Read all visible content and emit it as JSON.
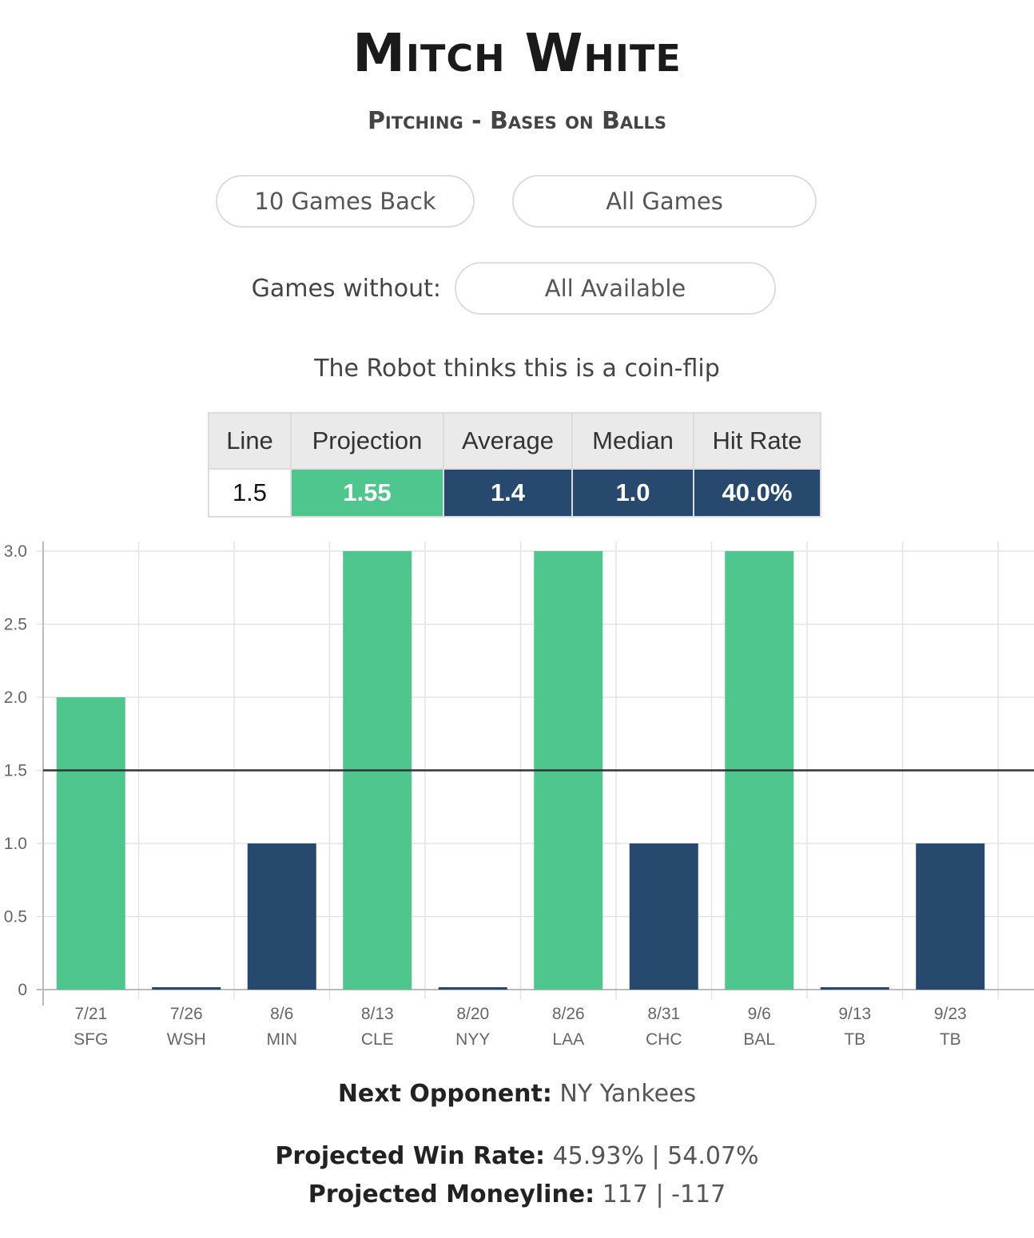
{
  "header": {
    "player_name": "Mitch White",
    "stat_title": "Pitching - Bases on Balls"
  },
  "filters": {
    "games_back": "10 Games Back",
    "all_games": "All Games",
    "games_without_label": "Games without:",
    "games_without_value": "All Available"
  },
  "robot_text": "The Robot thinks this is a coin-flip",
  "stats_table": {
    "headers": [
      "Line",
      "Projection",
      "Average",
      "Median",
      "Hit Rate"
    ],
    "values": [
      "1.5",
      "1.55",
      "1.4",
      "1.0",
      "40.0%"
    ]
  },
  "colors": {
    "over": "#4fc68e",
    "under": "#27496d",
    "line": "#333333"
  },
  "chart_data": {
    "type": "bar",
    "categories": [
      "7/21",
      "7/26",
      "8/6",
      "8/13",
      "8/20",
      "8/26",
      "8/31",
      "9/6",
      "9/13",
      "9/23"
    ],
    "opponents": [
      "SFG",
      "WSH",
      "MIN",
      "CLE",
      "NYY",
      "LAA",
      "CHC",
      "BAL",
      "TB",
      "TB"
    ],
    "values": [
      2,
      0,
      1,
      3,
      0,
      3,
      1,
      3,
      0,
      1
    ],
    "line_value": 1.5,
    "ylim": [
      0,
      3
    ],
    "yticks": [
      "0",
      "0.5",
      "1.0",
      "1.5",
      "2.0",
      "2.5",
      "3.0"
    ],
    "grid": true,
    "xlabel": "",
    "ylabel": ""
  },
  "footer": {
    "next_opponent_label": "Next Opponent:",
    "next_opponent_value": "NY Yankees",
    "win_rate_label": "Projected Win Rate:",
    "win_rate_value": "45.93% | 54.07%",
    "moneyline_label": "Projected Moneyline:",
    "moneyline_value": "117 | -117"
  }
}
